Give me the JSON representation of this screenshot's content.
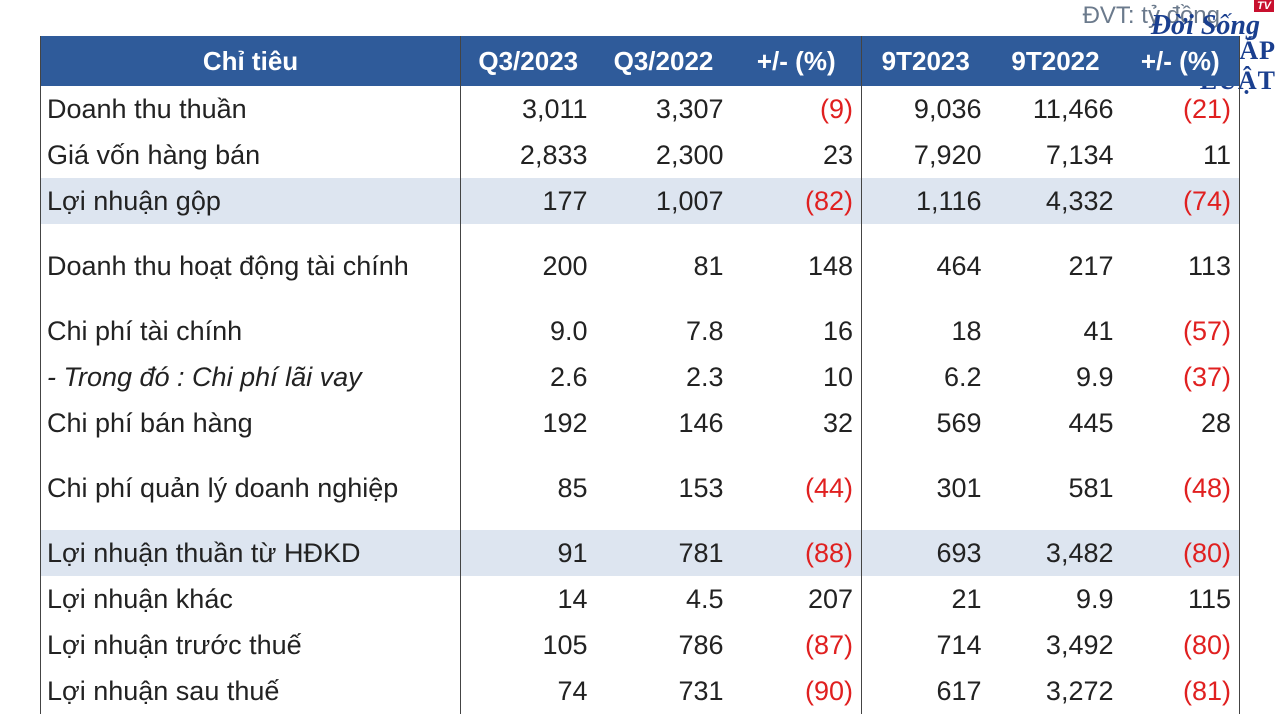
{
  "unit_note": "ĐVT: tỷ đồng",
  "logo": {
    "badge": "TV",
    "line1": "Đời Sống",
    "line2": "PHÁP LUẬT"
  },
  "table": {
    "header": [
      "Chỉ tiêu",
      "Q3/2023",
      "Q3/2022",
      "+/- (%)",
      "9T2023",
      "9T2022",
      "+/- (%)"
    ],
    "rows": [
      [
        "Doanh thu thuần",
        "3,011",
        "3,307",
        "(9)",
        "9,036",
        "11,466",
        "(21)"
      ],
      [
        "Giá vốn hàng bán",
        "2,833",
        "2,300",
        "23",
        "7,920",
        "7,134",
        "11"
      ],
      [
        "Lợi nhuận gộp",
        "177",
        "1,007",
        "(82)",
        "1,116",
        "4,332",
        "(74)"
      ],
      [
        "Doanh thu hoạt động tài chính",
        "200",
        "81",
        "148",
        "464",
        "217",
        "113"
      ],
      [
        "Chi phí tài chính",
        "9.0",
        "7.8",
        "16",
        "18",
        "41",
        "(57)"
      ],
      [
        "- Trong đó : Chi phí lãi vay",
        "2.6",
        "2.3",
        "10",
        "6.2",
        "9.9",
        "(37)"
      ],
      [
        "Chi phí bán hàng",
        "192",
        "146",
        "32",
        "569",
        "445",
        "28"
      ],
      [
        "Chi phí quản lý doanh nghiệp",
        "85",
        "153",
        "(44)",
        "301",
        "581",
        "(48)"
      ],
      [
        "Lợi nhuận thuần từ HĐKD",
        "91",
        "781",
        "(88)",
        "693",
        "3,482",
        "(80)"
      ],
      [
        "Lợi nhuận khác",
        "14",
        "4.5",
        "207",
        "21",
        "9.9",
        "115"
      ],
      [
        "Lợi nhuận trước thuế",
        "105",
        "786",
        "(87)",
        "714",
        "3,492",
        "(80)"
      ],
      [
        "Lợi nhuận sau thuế",
        "74",
        "731",
        "(90)",
        "617",
        "3,272",
        "(81)"
      ]
    ]
  }
}
